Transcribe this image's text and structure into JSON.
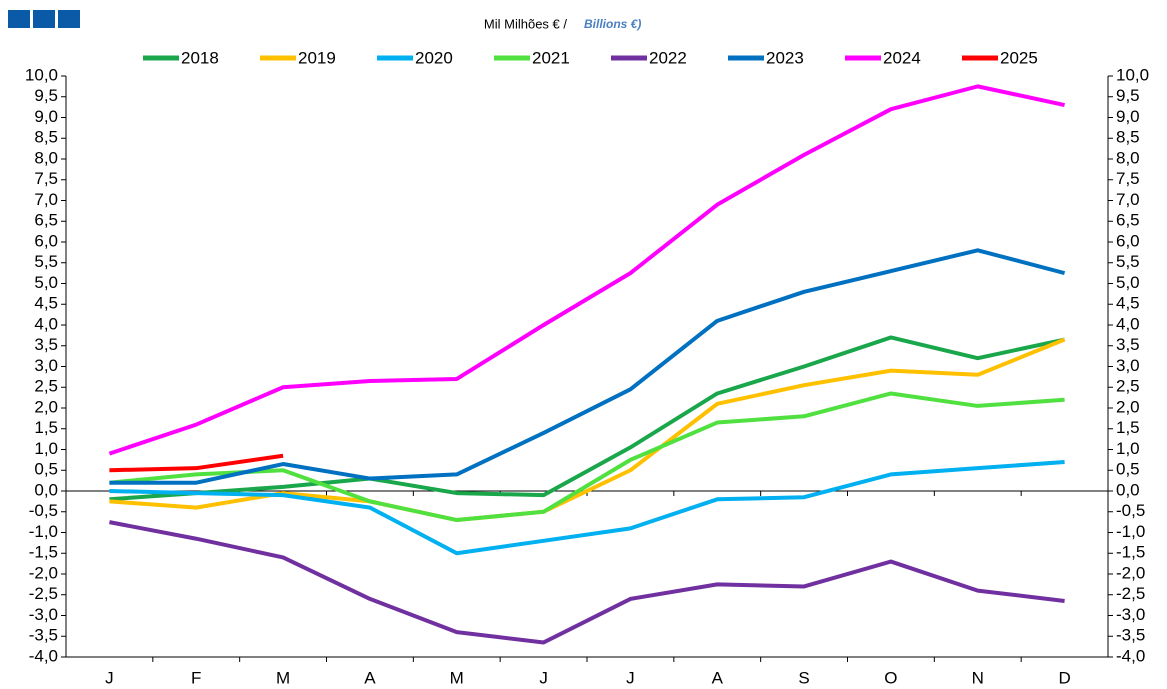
{
  "chart_data": {
    "type": "line",
    "title": "Mil Milhões € /",
    "subtitle": "Billions €)",
    "categories": [
      "J",
      "F",
      "M",
      "A",
      "M",
      "J",
      "J",
      "A",
      "S",
      "O",
      "N",
      "D"
    ],
    "series": [
      {
        "name": "2018",
        "color": "#1aa64a",
        "values": [
          -0.2,
          -0.05,
          0.1,
          0.3,
          -0.05,
          -0.1,
          1.05,
          2.35,
          3.0,
          3.7,
          3.2,
          3.65
        ]
      },
      {
        "name": "2019",
        "color": "#ffc000",
        "values": [
          -0.25,
          -0.4,
          -0.05,
          -0.25,
          -0.7,
          -0.5,
          0.5,
          2.1,
          2.55,
          2.9,
          2.8,
          3.65
        ]
      },
      {
        "name": "2020",
        "color": "#00b0f0",
        "values": [
          0.0,
          -0.05,
          -0.1,
          -0.4,
          -1.5,
          -1.2,
          -0.9,
          -0.2,
          -0.15,
          0.4,
          0.55,
          0.7
        ]
      },
      {
        "name": "2021",
        "color": "#50e040",
        "values": [
          0.2,
          0.4,
          0.5,
          -0.25,
          -0.7,
          -0.5,
          0.75,
          1.65,
          1.8,
          2.35,
          2.05,
          2.2
        ]
      },
      {
        "name": "2022",
        "color": "#7030a0",
        "values": [
          -0.75,
          -1.15,
          -1.6,
          -2.6,
          -3.4,
          -3.65,
          -2.6,
          -2.25,
          -2.3,
          -1.7,
          -2.4,
          -2.65
        ]
      },
      {
        "name": "2023",
        "color": "#0070c0",
        "values": [
          0.2,
          0.2,
          0.65,
          0.3,
          0.4,
          1.4,
          2.45,
          4.1,
          4.8,
          5.3,
          5.8,
          5.25
        ]
      },
      {
        "name": "2024",
        "color": "#ff00ff",
        "values": [
          0.9,
          1.6,
          2.5,
          2.65,
          2.7,
          4.0,
          5.25,
          6.9,
          8.1,
          9.2,
          9.75,
          9.3
        ]
      },
      {
        "name": "2025",
        "color": "#ff0000",
        "values": [
          0.5,
          0.55,
          0.85,
          null,
          null,
          null,
          null,
          null,
          null,
          null,
          null,
          null
        ]
      }
    ],
    "ylim": [
      -4,
      10
    ],
    "yticks": [
      {
        "value": -4,
        "label": "-4,0"
      },
      {
        "value": -3.5,
        "label": "-3,5"
      },
      {
        "value": -3,
        "label": "-3,0"
      },
      {
        "value": -2.5,
        "label": "-2,5"
      },
      {
        "value": -2,
        "label": "-2,0"
      },
      {
        "value": -1.5,
        "label": "-1,5"
      },
      {
        "value": -1,
        "label": "-1,0"
      },
      {
        "value": -0.5,
        "label": "-0,5"
      },
      {
        "value": 0,
        "label": "0,0"
      },
      {
        "value": 0.5,
        "label": "0,5"
      },
      {
        "value": 1,
        "label": "1,0"
      },
      {
        "value": 1.5,
        "label": "1,5"
      },
      {
        "value": 2,
        "label": "2,0"
      },
      {
        "value": 2.5,
        "label": "2,5"
      },
      {
        "value": 3,
        "label": "3,0"
      },
      {
        "value": 3.5,
        "label": "3,5"
      },
      {
        "value": 4,
        "label": "4,0"
      },
      {
        "value": 4.5,
        "label": "4,5"
      },
      {
        "value": 5,
        "label": "5,0"
      },
      {
        "value": 5.5,
        "label": "5,5"
      },
      {
        "value": 6,
        "label": "6,0"
      },
      {
        "value": 6.5,
        "label": "6,5"
      },
      {
        "value": 7,
        "label": "7,0"
      },
      {
        "value": 7.5,
        "label": "7,5"
      },
      {
        "value": 8,
        "label": "8,0"
      },
      {
        "value": 8.5,
        "label": "8,5"
      },
      {
        "value": 9,
        "label": "9,0"
      },
      {
        "value": 9.5,
        "label": "9,5"
      },
      {
        "value": 10,
        "label": "10,0"
      }
    ],
    "grid": false
  }
}
